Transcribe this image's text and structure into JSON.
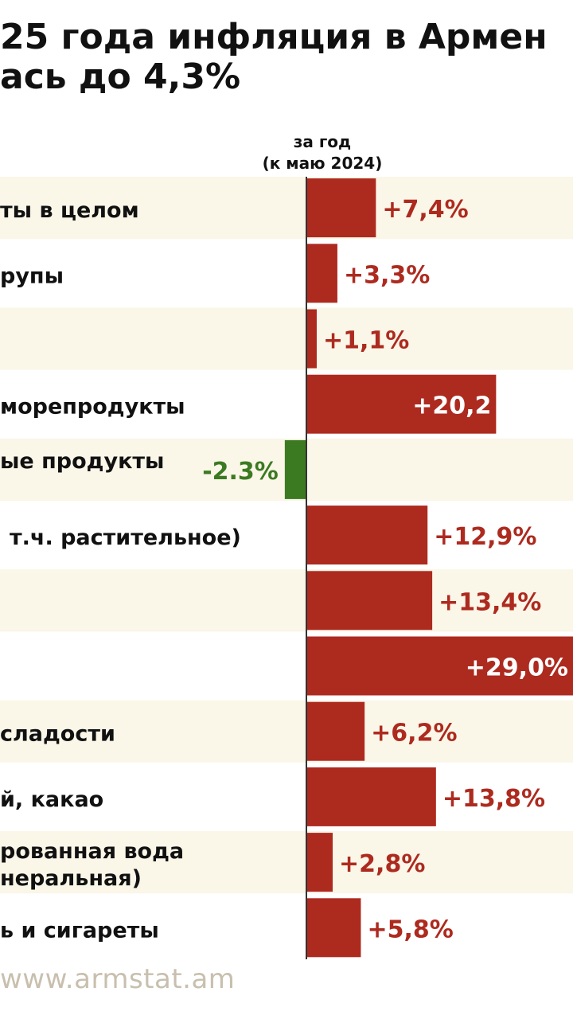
{
  "title_lines": [
    "25 года инфляция в Армен",
    "ась до 4,3%"
  ],
  "period_label": [
    "за год",
    "(к маю 2024)"
  ],
  "source": "www.armstat.am",
  "colors": {
    "positive": "#ad2a1f",
    "negative": "#3c7a22",
    "row_band": "#faf6e8",
    "axis": "#333333"
  },
  "chart_data": {
    "type": "bar",
    "orientation": "horizontal",
    "categories": [
      "ты в целом",
      "рупы",
      "",
      "морепродукты",
      "ые продукты",
      "т.ч. растительное)",
      "",
      "",
      "сладости",
      "й, какао",
      "рованная вода\nнеральная)",
      "ь и сигареты"
    ],
    "values": [
      7.4,
      3.3,
      1.1,
      20.2,
      -2.3,
      12.9,
      13.4,
      29.0,
      6.2,
      13.8,
      2.8,
      5.8
    ],
    "labels": [
      "+7,4%",
      "+3,3%",
      "+1,1%",
      "+20,2",
      "-2.3%",
      "+12,9%",
      "+13,4%",
      "+29,0%",
      "+6,2%",
      "+13,8%",
      "+2,8%",
      "+5,8%"
    ]
  }
}
